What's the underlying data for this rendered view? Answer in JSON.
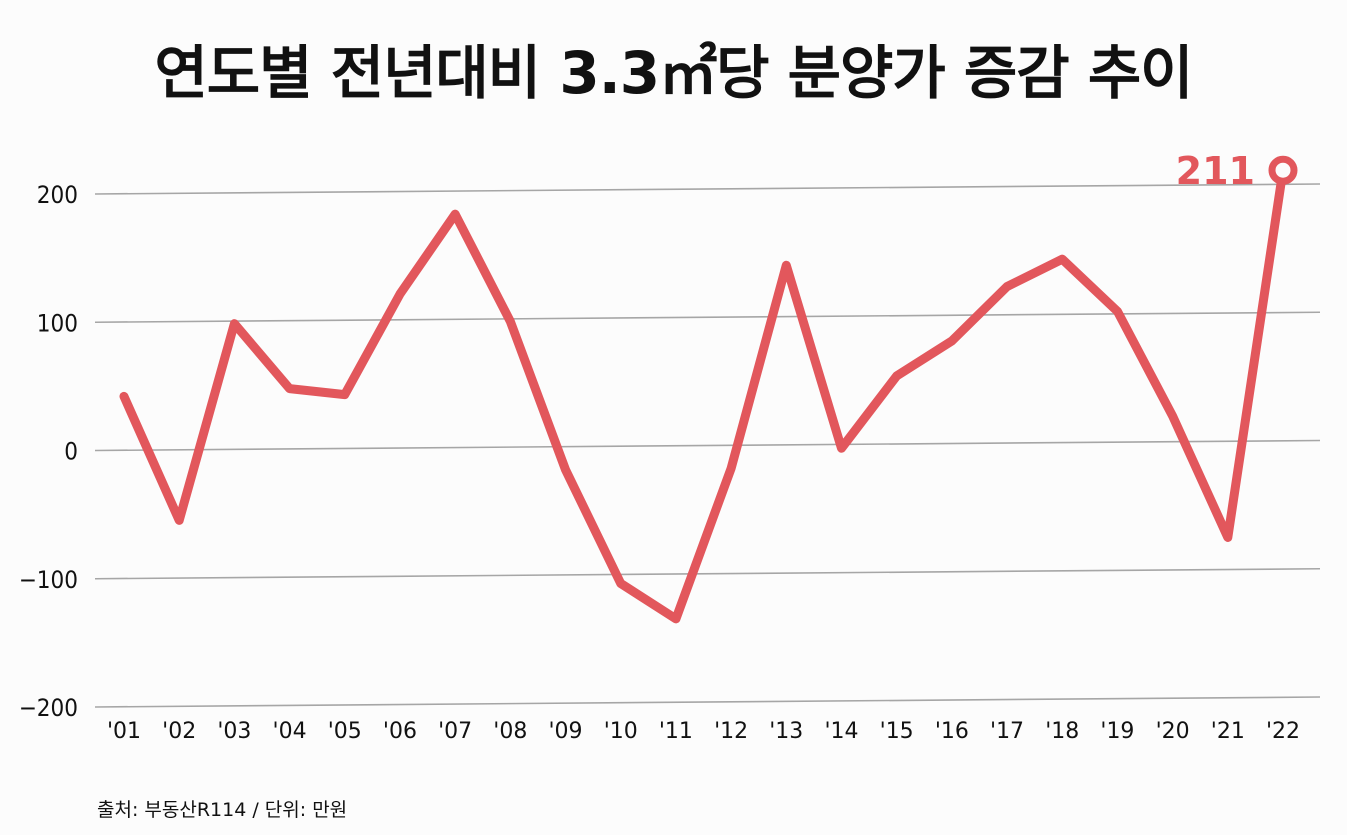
{
  "chart_data": {
    "type": "line",
    "title": "연도별 전년대비 3.3㎡당 분양가 증감 추이",
    "source": "출처: 부동산R114 / 단위: 만원",
    "categories": [
      "'01",
      "'02",
      "'03",
      "'04",
      "'05",
      "'06",
      "'07",
      "'08",
      "'09",
      "'10",
      "'11",
      "'12",
      "'13",
      "'14",
      "'15",
      "'16",
      "'17",
      "'18",
      "'19",
      "'20",
      "'21",
      "'22"
    ],
    "series": [
      {
        "values": [
          42,
          -55,
          98,
          47,
          42,
          120,
          182,
          98,
          -18,
          -107,
          -135,
          -18,
          140,
          -3,
          53,
          80,
          122,
          143,
          102,
          20,
          -75,
          211
        ]
      }
    ],
    "ylim": [
      -200,
      200
    ],
    "yticks": [
      -200,
      -100,
      0,
      100,
      200
    ],
    "end_label": "211",
    "grid": true,
    "line_color": "#e2575c",
    "grid_color": "#a6a6a6"
  }
}
